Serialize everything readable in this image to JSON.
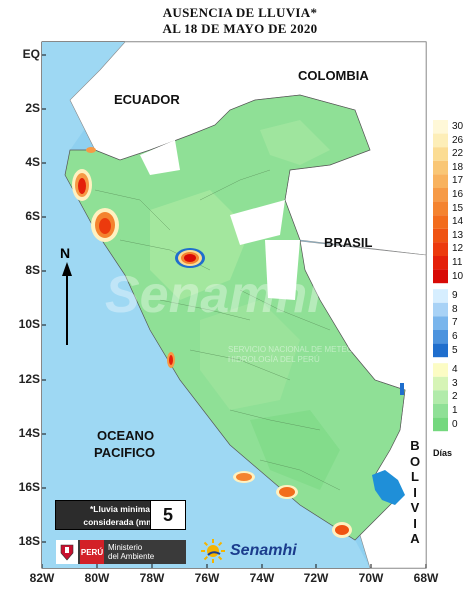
{
  "title_line1": "AUSENCIA DE LLUVIA*",
  "title_line2": "AL 18 DE MAYO DE 2020",
  "lat_labels": [
    "EQ",
    "2S",
    "4S",
    "6S",
    "8S",
    "10S",
    "12S",
    "14S",
    "16S",
    "18S"
  ],
  "lon_labels": [
    "82W",
    "80W",
    "78W",
    "76W",
    "74W",
    "72W",
    "70W",
    "68W"
  ],
  "countries": {
    "colombia": "COLOMBIA",
    "ecuador": "ECUADOR",
    "brasil": "BRASIL",
    "ocean_line1": "OCEANO",
    "ocean_line2": "PACIFICO",
    "bolivia": "BOLIVIA"
  },
  "north_label": "N",
  "watermark": "Senamhi",
  "watermark_sub": "SERVICIO NACIONAL DE METEOROLOGÍA E HIDROLOGÍA DEL PERÚ",
  "legend": {
    "title": "Días",
    "ticks": [
      "30",
      "26",
      "22",
      "18",
      "17",
      "16",
      "15",
      "14",
      "13",
      "12",
      "11",
      "10",
      "9",
      "8",
      "7",
      "6",
      "5",
      "4",
      "3",
      "2",
      "1",
      "0"
    ],
    "colors": {
      "30": "#fff8d8",
      "26": "#fdeeb8",
      "22": "#fbdc93",
      "18": "#f9c675",
      "17": "#f8b25e",
      "16": "#f69a46",
      "15": "#f4832f",
      "14": "#f26c1c",
      "13": "#ef5312",
      "12": "#ec3a0d",
      "11": "#e4200a",
      "10": "#d80a06",
      "9": "#d6eeff",
      "8": "#a8d2f6",
      "7": "#79b5ec",
      "6": "#4c93de",
      "5": "#1f6ecd",
      "4": "#fcfcc4",
      "3": "#d6f4b6",
      "2": "#b1ebaa",
      "1": "#8fe096",
      "0": "#74d87e"
    }
  },
  "note_line1": "*Lluvia minima",
  "note_line2": "considerada (mm)",
  "note_value": "5",
  "logo_peru": "PERÚ",
  "logo_ministry_line1": "Ministerio",
  "logo_ministry_line2": "del Ambiente",
  "logo_senamhi": "Senamhi"
}
